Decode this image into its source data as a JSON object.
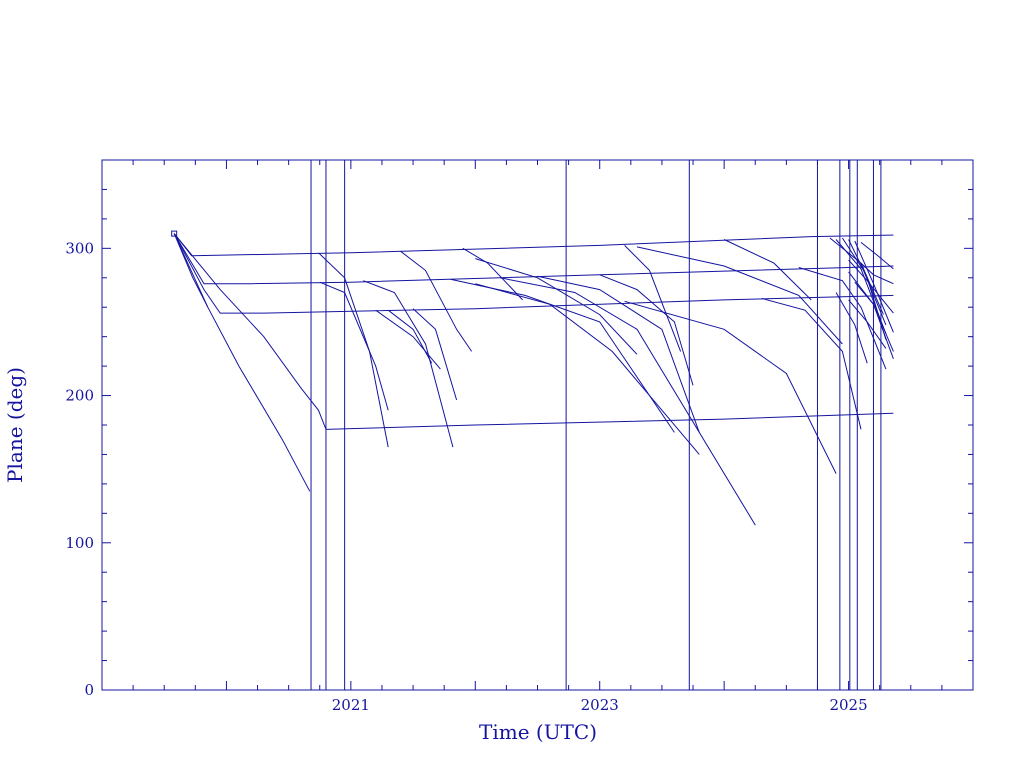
{
  "chart_data": {
    "type": "line",
    "title": "",
    "xlabel": "Time (UTC)",
    "ylabel": "Plane (deg)",
    "xlim": [
      2019.0,
      2026.0
    ],
    "ylim": [
      0,
      360
    ],
    "x_ticks": [
      2021,
      2023,
      2025
    ],
    "x_tick_labels": [
      "2021",
      "2023",
      "2025"
    ],
    "y_ticks": [
      0,
      100,
      200,
      300
    ],
    "y_tick_labels": [
      "0",
      "100",
      "200",
      "300"
    ],
    "grid": false,
    "legend": "none",
    "color": "#1414a0",
    "vertical_markers": [
      2020.68,
      2020.8,
      2020.95,
      2022.73,
      2023.72,
      2024.75,
      2024.93,
      2025.01,
      2025.07,
      2025.2,
      2025.26
    ],
    "series": [
      {
        "x": [
          2019.58,
          2019.72,
          2021.0,
          2023.0,
          2024.7,
          2025.36
        ],
        "values": [
          310,
          295,
          297,
          302,
          308,
          309
        ]
      },
      {
        "x": [
          2019.58,
          2019.73,
          2019.85
        ],
        "values": [
          310,
          280,
          260
        ]
      },
      {
        "x": [
          2019.58,
          2019.82,
          2020.2,
          2021.0,
          2023.0,
          2025.0,
          2025.36
        ],
        "values": [
          310,
          276,
          276,
          277,
          282,
          287,
          288
        ]
      },
      {
        "x": [
          2019.58,
          2019.82,
          2019.95,
          2020.3,
          2022.0,
          2024.0,
          2025.36
        ],
        "values": [
          310,
          272,
          256,
          256,
          259,
          265,
          268
        ]
      },
      {
        "x": [
          2019.58,
          2019.85,
          2020.1,
          2020.45,
          2020.67
        ],
        "values": [
          310,
          260,
          220,
          170,
          135
        ]
      },
      {
        "x": [
          2019.58,
          2019.95,
          2020.3,
          2020.6,
          2020.74,
          2020.8,
          2022.0,
          2024.0,
          2025.36
        ],
        "values": [
          310,
          272,
          240,
          205,
          190,
          177,
          180,
          184,
          188
        ]
      },
      {
        "x": [
          2020.74,
          2020.95,
          2021.15,
          2021.3
        ],
        "values": [
          297,
          280,
          230,
          165
        ]
      },
      {
        "x": [
          2020.75,
          2020.95,
          2021.2,
          2021.3
        ],
        "values": [
          277,
          270,
          220,
          190
        ]
      },
      {
        "x": [
          2021.4,
          2021.6,
          2021.85,
          2021.97
        ],
        "values": [
          298,
          285,
          245,
          230
        ]
      },
      {
        "x": [
          2021.9,
          2022.1,
          2022.38
        ],
        "values": [
          300,
          290,
          265
        ]
      },
      {
        "x": [
          2021.1,
          2021.35,
          2021.6,
          2021.82
        ],
        "values": [
          278,
          270,
          235,
          165
        ]
      },
      {
        "x": [
          2021.3,
          2021.5,
          2021.65
        ],
        "values": [
          258,
          245,
          222
        ]
      },
      {
        "x": [
          2021.5,
          2021.68,
          2021.85
        ],
        "values": [
          259,
          245,
          197
        ]
      },
      {
        "x": [
          2021.2,
          2021.5,
          2021.72
        ],
        "values": [
          258,
          240,
          218
        ]
      },
      {
        "x": [
          2022.0,
          2022.5,
          2023.0,
          2023.3
        ],
        "values": [
          293,
          280,
          255,
          228
        ]
      },
      {
        "x": [
          2021.8,
          2022.4,
          2023.0,
          2023.6
        ],
        "values": [
          279,
          268,
          250,
          175
        ]
      },
      {
        "x": [
          2022.0,
          2022.6,
          2023.1,
          2023.8
        ],
        "values": [
          276,
          262,
          230,
          160
        ]
      },
      {
        "x": [
          2022.2,
          2022.8,
          2023.3,
          2024.25
        ],
        "values": [
          280,
          270,
          245,
          112
        ]
      },
      {
        "x": [
          2023.0,
          2023.3,
          2023.6,
          2023.75
        ],
        "values": [
          282,
          272,
          250,
          207
        ]
      },
      {
        "x": [
          2023.2,
          2023.4,
          2023.65
        ],
        "values": [
          302,
          285,
          230
        ]
      },
      {
        "x": [
          2022.5,
          2023.0,
          2023.5,
          2023.8
        ],
        "values": [
          281,
          272,
          245,
          175
        ]
      },
      {
        "x": [
          2023.3,
          2024.0,
          2024.6,
          2024.95
        ],
        "values": [
          301,
          288,
          268,
          235
        ]
      },
      {
        "x": [
          2023.2,
          2024.0,
          2024.5,
          2024.9
        ],
        "values": [
          264,
          245,
          215,
          147
        ]
      },
      {
        "x": [
          2024.0,
          2024.4,
          2024.7
        ],
        "values": [
          306,
          290,
          265
        ]
      },
      {
        "x": [
          2024.3,
          2024.65,
          2024.95,
          2025.1
        ],
        "values": [
          266,
          258,
          230,
          177
        ]
      },
      {
        "x": [
          2024.6,
          2024.95,
          2025.1,
          2025.3
        ],
        "values": [
          287,
          278,
          260,
          218
        ]
      },
      {
        "x": [
          2024.85,
          2025.1,
          2025.28
        ],
        "values": [
          307,
          290,
          255
        ]
      },
      {
        "x": [
          2024.9,
          2025.1,
          2025.3
        ],
        "values": [
          306,
          286,
          242
        ]
      },
      {
        "x": [
          2024.95,
          2025.12,
          2025.3
        ],
        "values": [
          307,
          285,
          248
        ]
      },
      {
        "x": [
          2025.0,
          2025.15,
          2025.3
        ],
        "values": [
          306,
          280,
          238
        ]
      },
      {
        "x": [
          2025.05,
          2025.2,
          2025.36
        ],
        "values": [
          305,
          276,
          243
        ]
      },
      {
        "x": [
          2025.0,
          2025.2,
          2025.36
        ],
        "values": [
          284,
          262,
          225
        ]
      },
      {
        "x": [
          2025.0,
          2025.15,
          2025.3
        ],
        "values": [
          265,
          250,
          232
        ]
      },
      {
        "x": [
          2024.9,
          2025.05,
          2025.15
        ],
        "values": [
          270,
          248,
          222
        ]
      },
      {
        "x": [
          2025.0,
          2025.15,
          2025.36
        ],
        "values": [
          292,
          278,
          256
        ]
      },
      {
        "x": [
          2025.1,
          2025.25,
          2025.36
        ],
        "values": [
          304,
          294,
          286
        ]
      },
      {
        "x": [
          2025.1,
          2025.2,
          2025.36
        ],
        "values": [
          290,
          282,
          276
        ]
      },
      {
        "x": [
          2025.05,
          2025.2,
          2025.36
        ],
        "values": [
          277,
          262,
          230
        ]
      }
    ]
  }
}
